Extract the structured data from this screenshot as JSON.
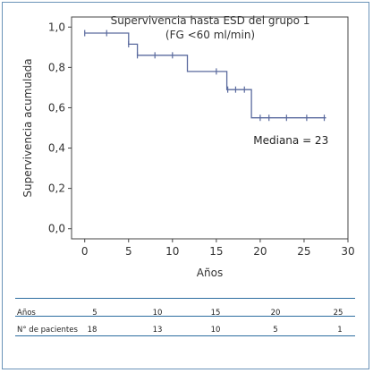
{
  "chart_data": {
    "type": "line",
    "title": "Supervivencia hasta ESD del grupo 1",
    "subtitle": "(FG <60 ml/min)",
    "xlabel": "Años",
    "ylabel": "Supervivencia acumulada",
    "xlim": [
      -1.5,
      30
    ],
    "ylim": [
      -0.05,
      1.05
    ],
    "xticks": [
      0,
      5,
      10,
      15,
      20,
      25,
      30
    ],
    "xtick_labels": [
      "0",
      "5",
      "10",
      "15",
      "20",
      "25",
      "30"
    ],
    "yticks": [
      0.0,
      0.2,
      0.4,
      0.6,
      0.8,
      1.0
    ],
    "ytick_labels": [
      "0,0",
      "0,2",
      "0,4",
      "0,6",
      "0,8",
      "1,0"
    ],
    "grid": false,
    "series": [
      {
        "step_points": [
          [
            0,
            0.97
          ],
          [
            5,
            0.97
          ],
          [
            5,
            0.915
          ],
          [
            6,
            0.915
          ],
          [
            6,
            0.86
          ],
          [
            11.7,
            0.86
          ],
          [
            11.7,
            0.78
          ],
          [
            16.2,
            0.78
          ],
          [
            16.2,
            0.69
          ],
          [
            19,
            0.69
          ],
          [
            19,
            0.55
          ],
          [
            27.5,
            0.55
          ]
        ],
        "censored": [
          [
            0,
            0.97
          ],
          [
            2.5,
            0.97
          ],
          [
            5,
            0.915
          ],
          [
            6,
            0.86
          ],
          [
            8,
            0.86
          ],
          [
            10,
            0.86
          ],
          [
            15,
            0.78
          ],
          [
            16.3,
            0.69
          ],
          [
            17.2,
            0.69
          ],
          [
            18.2,
            0.69
          ],
          [
            20,
            0.55
          ],
          [
            21,
            0.55
          ],
          [
            23,
            0.55
          ],
          [
            25.3,
            0.55
          ],
          [
            27.3,
            0.55
          ]
        ],
        "color": "#5a6a9e"
      }
    ],
    "annotations": [
      {
        "text": "Mediana = 23",
        "x": 23.5,
        "y": 0.42
      }
    ]
  },
  "risk_table": {
    "row1_label": "Años",
    "row1_values": [
      "5",
      "10",
      "15",
      "20",
      "25"
    ],
    "row2_label": "N° de pacientes",
    "row2_values": [
      "18",
      "13",
      "10",
      "5",
      "1"
    ]
  }
}
